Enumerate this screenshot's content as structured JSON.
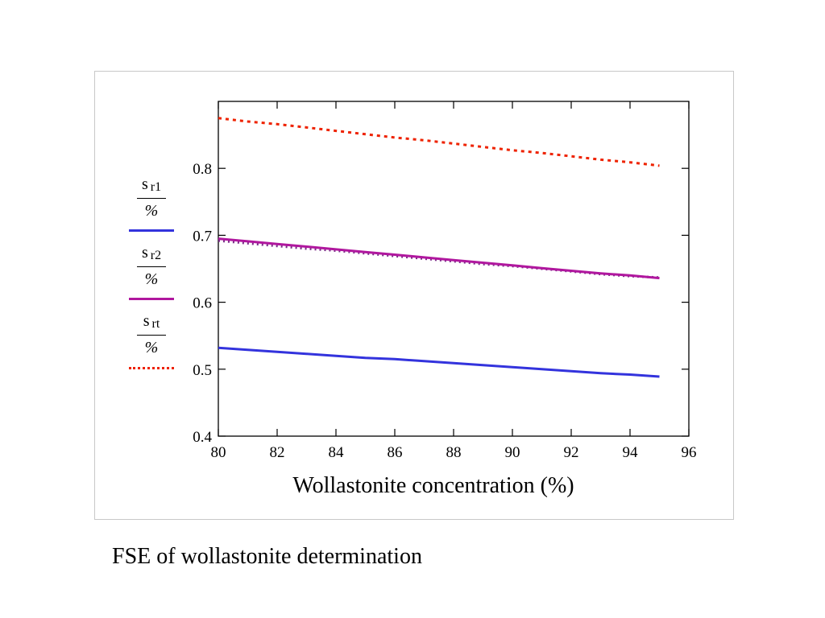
{
  "caption": "FSE of wollastonite determination",
  "chart_data": {
    "type": "line",
    "title": "",
    "xlabel": "Wollastonite concentration (%)",
    "ylabel": "",
    "xlim": [
      80,
      96
    ],
    "ylim": [
      0.4,
      0.9
    ],
    "xticks": [
      80,
      82,
      84,
      86,
      88,
      90,
      92,
      94,
      96
    ],
    "xtick_labels": [
      "80",
      "82",
      "84",
      "86",
      "88",
      "90",
      "92",
      "94",
      "96"
    ],
    "yticks": [
      0.4,
      0.5,
      0.6,
      0.7,
      0.8
    ],
    "ytick_labels": [
      "0.4",
      "0.5",
      "0.6",
      "0.7",
      "0.8"
    ],
    "grid": false,
    "legend_position": "left",
    "series": [
      {
        "legend_symbol": "s",
        "legend_sub": "r1",
        "legend_den": "%",
        "color": "#3333dd",
        "style": "solid",
        "x": [
          80,
          81,
          82,
          83,
          84,
          85,
          86,
          87,
          88,
          89,
          90,
          91,
          92,
          93,
          94,
          95
        ],
        "values": [
          0.532,
          0.529,
          0.526,
          0.523,
          0.52,
          0.517,
          0.515,
          0.512,
          0.509,
          0.506,
          0.503,
          0.5,
          0.497,
          0.494,
          0.492,
          0.489
        ]
      },
      {
        "legend_symbol": "s",
        "legend_sub": "r2",
        "legend_den": "%",
        "color": "#b0179e",
        "style": "solid",
        "x": [
          80,
          81,
          82,
          83,
          84,
          85,
          86,
          87,
          88,
          89,
          90,
          91,
          92,
          93,
          94,
          95
        ],
        "values": [
          0.695,
          0.691,
          0.687,
          0.683,
          0.679,
          0.675,
          0.671,
          0.667,
          0.663,
          0.659,
          0.655,
          0.651,
          0.647,
          0.643,
          0.64,
          0.636
        ]
      },
      {
        "legend_symbol": "s",
        "legend_sub": "rt",
        "legend_den": "%",
        "color": "#ee2200",
        "style": "dotted",
        "x": [
          80,
          81,
          82,
          83,
          84,
          85,
          86,
          87,
          88,
          89,
          90,
          91,
          92,
          93,
          94,
          95
        ],
        "values": [
          0.875,
          0.87,
          0.866,
          0.861,
          0.856,
          0.851,
          0.846,
          0.842,
          0.837,
          0.832,
          0.827,
          0.823,
          0.818,
          0.813,
          0.809,
          0.804
        ]
      }
    ],
    "extra_dotted": {
      "color": "#7a2a88",
      "x": [
        80,
        81,
        82,
        83,
        84,
        85,
        86,
        87,
        88,
        89,
        90,
        91,
        92,
        93,
        94,
        95
      ],
      "values": [
        0.692,
        0.688,
        0.684,
        0.68,
        0.677,
        0.673,
        0.669,
        0.665,
        0.661,
        0.657,
        0.654,
        0.65,
        0.646,
        0.642,
        0.639,
        0.637
      ]
    }
  }
}
